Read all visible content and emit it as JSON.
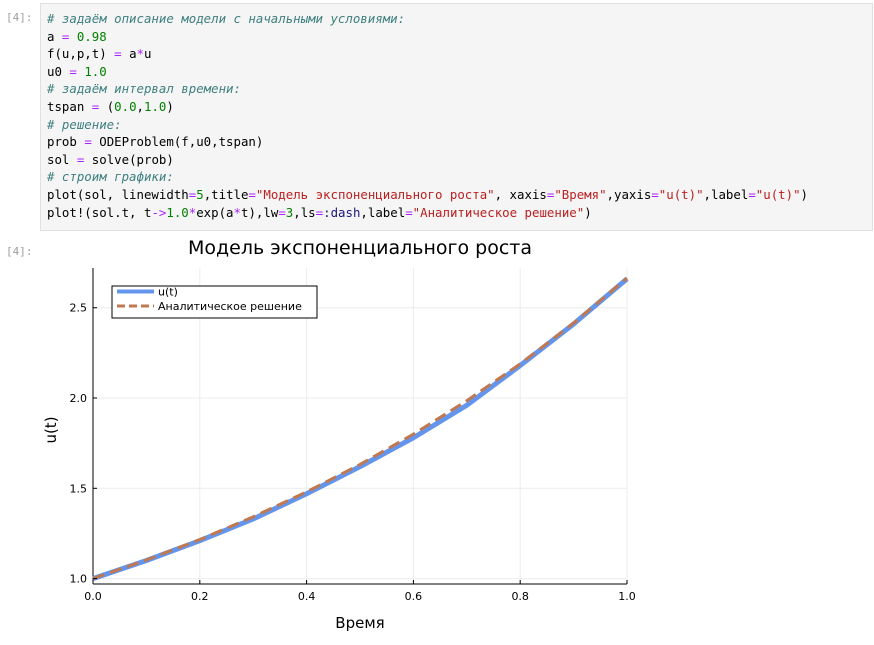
{
  "cells": {
    "input_prompt": "[4]:",
    "output_prompt": "[4]:"
  },
  "code": {
    "l1": "# задаём описание модели с начальными условиями:",
    "l2_a": "a ",
    "l2_op": "=",
    "l2_num": " 0.98",
    "l3_a": "f(u,p,t) ",
    "l3_op": "=",
    "l3_b": " a",
    "l3_op2": "*",
    "l3_c": "u",
    "l4_a": "u0 ",
    "l4_op": "=",
    "l4_num": " 1.0",
    "l5": "# задаём интервал времени:",
    "l6_a": "tspan ",
    "l6_op": "=",
    "l6_b": " (",
    "l6_n1": "0.0",
    "l6_c": ",",
    "l6_n2": "1.0",
    "l6_d": ")",
    "l7": "# решение:",
    "l8_a": "prob ",
    "l8_op": "=",
    "l8_b": " ODEProblem(f,u0,tspan)",
    "l9_a": "sol ",
    "l9_op": "=",
    "l9_b": " solve(prob)",
    "l10": "# строим графики:",
    "l11_a": "plot(sol, linewidth",
    "l11_op1": "=",
    "l11_n1": "5",
    "l11_b": ",title",
    "l11_op2": "=",
    "l11_s1": "\"Модель экспоненциального роста\"",
    "l11_c": ", xaxis",
    "l11_op3": "=",
    "l11_s2": "\"Время\"",
    "l11_d": ",yaxis",
    "l11_op4": "=",
    "l11_s3": "\"u(t)\"",
    "l11_e": ",label",
    "l11_op5": "=",
    "l11_s4": "\"u(t)\"",
    "l11_f": ")",
    "l12_a": "plot!(sol.t, t",
    "l12_op1": "->",
    "l12_n1": "1.0",
    "l12_op2": "*",
    "l12_b": "exp(a",
    "l12_op3": "*",
    "l12_c": "t),lw",
    "l12_op4": "=",
    "l12_n2": "3",
    "l12_d": ",ls",
    "l12_op5": "=",
    "l12_sym": ":dash",
    "l12_e": ",label",
    "l12_op6": "=",
    "l12_s1": "\"Аналитическое решение\"",
    "l12_f": ")"
  },
  "chart_data": {
    "type": "line",
    "title": "Модель экспоненциального роста",
    "xlabel": "Время",
    "ylabel": "u(t)",
    "xlim": [
      0.0,
      1.0
    ],
    "ylim": [
      0.97,
      2.72
    ],
    "xticks": [
      "0.0",
      "0.2",
      "0.4",
      "0.6",
      "0.8",
      "1.0"
    ],
    "yticks": [
      "1.0",
      "1.5",
      "2.0",
      "2.5"
    ],
    "xtick_values": [
      0.0,
      0.2,
      0.4,
      0.6,
      0.8,
      1.0
    ],
    "ytick_values": [
      1.0,
      1.5,
      2.0,
      2.5
    ],
    "grid": true,
    "legend_placement": "top-left",
    "series": [
      {
        "name": "u(t)",
        "color": "#6495ed",
        "style": "solid",
        "x": [
          0.0,
          0.1,
          0.2,
          0.3,
          0.4,
          0.5,
          0.6,
          0.7,
          0.8,
          0.9,
          1.0
        ],
        "y": [
          1.0,
          1.1,
          1.21,
          1.33,
          1.47,
          1.62,
          1.78,
          1.96,
          2.18,
          2.41,
          2.66
        ]
      },
      {
        "name": "Аналитическое решение",
        "color": "#c07850",
        "style": "dash",
        "x": [
          0.0,
          0.1,
          0.2,
          0.3,
          0.4,
          0.5,
          0.6,
          0.7,
          0.8,
          0.9,
          1.0
        ],
        "y": [
          1.0,
          1.103,
          1.216,
          1.342,
          1.48,
          1.632,
          1.8,
          1.985,
          2.189,
          2.415,
          2.664
        ]
      }
    ]
  }
}
